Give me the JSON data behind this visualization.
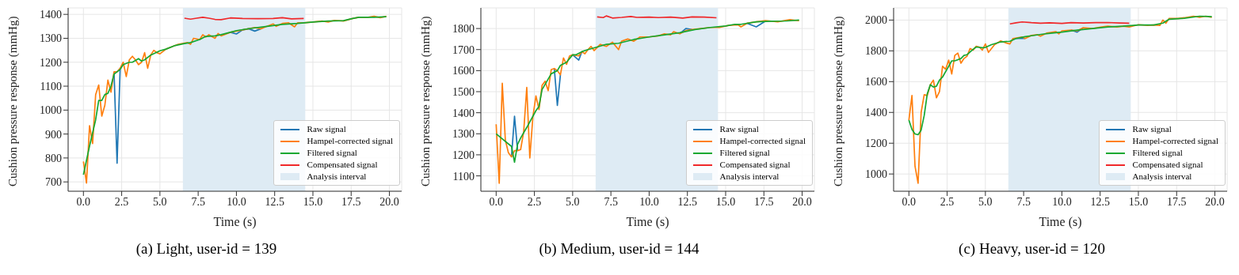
{
  "chart_data": [
    {
      "type": "line",
      "title": "(a) Light, user-id = 139",
      "xlabel": "Time (s)",
      "ylabel": "Cushion pressure response (mmHg)",
      "xlim": [
        -1,
        20.8
      ],
      "ylim": [
        661,
        1427
      ],
      "xticks": [
        {
          "value": 0,
          "label": "0.0"
        },
        {
          "value": 2.5,
          "label": "2.5"
        },
        {
          "value": 5,
          "label": "5.0"
        },
        {
          "value": 7.5,
          "label": "7.5"
        },
        {
          "value": 10,
          "label": "10.0"
        },
        {
          "value": 12.5,
          "label": "12.5"
        },
        {
          "value": 15,
          "label": "15.0"
        },
        {
          "value": 17.5,
          "label": "17.5"
        },
        {
          "value": 20,
          "label": "20.0"
        }
      ],
      "yticks": [
        700,
        800,
        900,
        1000,
        1100,
        1200,
        1300,
        1400
      ],
      "grid": true,
      "legend": "bottom right",
      "line_style": "solid",
      "marker": "none",
      "bands": [
        {
          "axis": "x",
          "from": 6.5,
          "to": 14.5,
          "label": "Analysis interval",
          "color": "#deebf4"
        }
      ],
      "series": [
        {
          "name": "Raw signal",
          "color": "#1f77b4",
          "x": [
            2,
            2.2,
            2.4,
            6,
            9.6,
            10,
            10.4,
            10.8,
            11.2,
            11.6
          ],
          "values": [
            1160,
            778,
            1170,
            null,
            1325,
            1318,
            1335,
            1340,
            1330,
            1340
          ]
        },
        {
          "name": "Hampel-corrected signal",
          "color": "#ff7f0e",
          "x": [
            0,
            0.2,
            0.4,
            0.6,
            0.8,
            1,
            1.2,
            1.4,
            1.6,
            1.8,
            2,
            2.2,
            2.4,
            2.6,
            2.8,
            3,
            3.2,
            3.4,
            3.6,
            3.8,
            4,
            4.2,
            4.4,
            4.6,
            4.8,
            5,
            5.4,
            5.8,
            6.2,
            6.6,
            6.8,
            7,
            7.2,
            7.6,
            7.8,
            8,
            8.2,
            8.6,
            8.8,
            9,
            9.6,
            10,
            10.4,
            10.8,
            11.2,
            11.6,
            12,
            12.4,
            12.6,
            13,
            13.4,
            13.8,
            14,
            14.4,
            15,
            15.6,
            16,
            16.4,
            17,
            17.6,
            18,
            18.6,
            19,
            19.4,
            19.8
          ],
          "values": [
            785,
            695,
            935,
            860,
            1065,
            1105,
            975,
            1020,
            1125,
            1075,
            1160,
            1160,
            1175,
            1200,
            1140,
            1210,
            1225,
            1210,
            1190,
            1200,
            1240,
            1175,
            1230,
            1250,
            1240,
            1235,
            1255,
            1265,
            1275,
            1280,
            1282,
            1275,
            1300,
            1295,
            1315,
            1305,
            1315,
            1300,
            1320,
            1310,
            1325,
            1330,
            1335,
            1340,
            1345,
            1340,
            1350,
            1360,
            1350,
            1362,
            1365,
            1348,
            1365,
            1365,
            1368,
            1372,
            1368,
            1375,
            1372,
            1383,
            1388,
            1388,
            1392,
            1386,
            1392
          ]
        },
        {
          "name": "Filtered signal",
          "color": "#16a832",
          "x": [
            0,
            0.4,
            0.8,
            1,
            1.2,
            1.4,
            1.6,
            1.8,
            2,
            2.4,
            2.6,
            3,
            3.2,
            3.6,
            3.8,
            4,
            4.4,
            5,
            5.4,
            6,
            6.6,
            7,
            7.6,
            8,
            8.6,
            9,
            9.6,
            10,
            11,
            12,
            13,
            14,
            15,
            16,
            17,
            17.6,
            18,
            19,
            19.8
          ],
          "values": [
            730,
            850,
            960,
            1040,
            1040,
            1065,
            1070,
            1100,
            1150,
            1170,
            1190,
            1200,
            1200,
            1215,
            1205,
            1210,
            1230,
            1248,
            1255,
            1270,
            1278,
            1282,
            1295,
            1308,
            1310,
            1315,
            1325,
            1332,
            1342,
            1350,
            1358,
            1362,
            1368,
            1372,
            1374,
            1383,
            1388,
            1388,
            1390
          ]
        },
        {
          "name": "Compensated signal",
          "color": "#f0282a",
          "x": [
            6.6,
            7,
            7.4,
            7.8,
            8.2,
            8.6,
            9,
            9.6,
            10.4,
            11.4,
            12.4,
            13,
            13.6,
            14.4
          ],
          "values": [
            1384,
            1380,
            1384,
            1388,
            1384,
            1379,
            1378,
            1385,
            1383,
            1382,
            1383,
            1386,
            1381,
            1383
          ]
        }
      ]
    },
    {
      "type": "line",
      "title": "(b) Medium, user-id = 144",
      "xlabel": "Time (s)",
      "ylabel": "Cushion pressure response (mmHg)",
      "xlim": [
        -1,
        20.8
      ],
      "ylim": [
        1027,
        1898
      ],
      "xticks": [
        {
          "value": 0,
          "label": "0.0"
        },
        {
          "value": 2.5,
          "label": "2.5"
        },
        {
          "value": 5,
          "label": "5.0"
        },
        {
          "value": 7.5,
          "label": "7.5"
        },
        {
          "value": 10,
          "label": "10.0"
        },
        {
          "value": 12.5,
          "label": "12.5"
        },
        {
          "value": 15,
          "label": "15.0"
        },
        {
          "value": 17.5,
          "label": "17.5"
        },
        {
          "value": 20,
          "label": "20.0"
        }
      ],
      "yticks": [
        1100,
        1200,
        1300,
        1400,
        1500,
        1600,
        1700,
        1800
      ],
      "grid": true,
      "legend": "bottom right",
      "line_style": "solid",
      "marker": "none",
      "bands": [
        {
          "axis": "x",
          "from": 6.5,
          "to": 14.5,
          "label": "Analysis interval",
          "color": "#deebf4"
        }
      ],
      "series": [
        {
          "name": "Raw signal",
          "color": "#1f77b4",
          "x": [
            1,
            1.2,
            1.4,
            3,
            3.8,
            4,
            4.2,
            4.8,
            5,
            5.4,
            5.6,
            10,
            12,
            12.4,
            12.8,
            15,
            16.4,
            17,
            17.6
          ],
          "values": [
            1190,
            1383,
            1220,
            null,
            1610,
            1435,
            1580,
            null,
            1675,
            1650,
            1690,
            null,
            1775,
            1800,
            1795,
            null,
            1825,
            1808,
            1835
          ]
        },
        {
          "name": "Hampel-corrected signal",
          "color": "#ff7f0e",
          "x": [
            0,
            0.2,
            0.4,
            0.6,
            0.8,
            1,
            1.2,
            1.4,
            1.6,
            1.8,
            2,
            2.2,
            2.4,
            2.6,
            2.8,
            3,
            3.2,
            3.4,
            3.6,
            3.8,
            4,
            4.2,
            4.4,
            4.6,
            4.8,
            5,
            5.4,
            5.6,
            5.8,
            6,
            6.2,
            6.4,
            6.8,
            7.2,
            7.6,
            8,
            8.2,
            8.6,
            9,
            9.4,
            10,
            10.6,
            11,
            11.4,
            11.6,
            12,
            12.4,
            12.8,
            13.4,
            14,
            14.6,
            15.2,
            15.8,
            16,
            16.4,
            17,
            17.6,
            18.4,
            19.2,
            19.8
          ],
          "values": [
            1345,
            1065,
            1540,
            1270,
            1210,
            1190,
            1220,
            1220,
            1225,
            1310,
            1520,
            1185,
            1380,
            1480,
            1415,
            1530,
            1550,
            1505,
            1605,
            1610,
            1600,
            1580,
            1660,
            1630,
            1670,
            1675,
            1670,
            1690,
            1680,
            1700,
            1715,
            1695,
            1725,
            1715,
            1735,
            1700,
            1740,
            1750,
            1740,
            1760,
            1760,
            1765,
            1775,
            1770,
            1785,
            1775,
            1790,
            1795,
            1800,
            1805,
            1805,
            1815,
            1818,
            1808,
            1825,
            1832,
            1838,
            1832,
            1842,
            1837
          ]
        },
        {
          "name": "Filtered signal",
          "color": "#16a832",
          "x": [
            0,
            1,
            1.2,
            1.4,
            1.6,
            2,
            2.6,
            2.8,
            3,
            3.6,
            4,
            4.2,
            4.6,
            5,
            5.2,
            5.6,
            6,
            6.6,
            7.2,
            8,
            9,
            10,
            11,
            12,
            13,
            14,
            15,
            15.6,
            16,
            17,
            18,
            19,
            19.8
          ],
          "values": [
            1300,
            1240,
            1165,
            1250,
            1280,
            1330,
            1410,
            1430,
            1510,
            1585,
            1600,
            1625,
            1640,
            1675,
            1675,
            1690,
            1700,
            1712,
            1725,
            1730,
            1748,
            1760,
            1770,
            1780,
            1795,
            1805,
            1812,
            1820,
            1820,
            1832,
            1835,
            1836,
            1840
          ]
        },
        {
          "name": "Compensated signal",
          "color": "#f0282a",
          "x": [
            6.6,
            7,
            7.2,
            7.6,
            8.2,
            8.8,
            9.2,
            10,
            10.6,
            11.4,
            12.2,
            12.8,
            13.6,
            14.4
          ],
          "values": [
            1855,
            1852,
            1860,
            1850,
            1853,
            1857,
            1853,
            1854,
            1852,
            1854,
            1850,
            1855,
            1854,
            1851
          ]
        }
      ]
    },
    {
      "type": "line",
      "title": "(c) Heavy, user-id = 120",
      "xlabel": "Time (s)",
      "ylabel": "Cushion pressure response (mmHg)",
      "xlim": [
        -1,
        20.8
      ],
      "ylim": [
        888,
        2079
      ],
      "xticks": [
        {
          "value": 0,
          "label": "0.0"
        },
        {
          "value": 2.5,
          "label": "2.5"
        },
        {
          "value": 5,
          "label": "5.0"
        },
        {
          "value": 7.5,
          "label": "7.5"
        },
        {
          "value": 10,
          "label": "10.0"
        },
        {
          "value": 12.5,
          "label": "12.5"
        },
        {
          "value": 15,
          "label": "15.0"
        },
        {
          "value": 17.5,
          "label": "17.5"
        },
        {
          "value": 20,
          "label": "20.0"
        }
      ],
      "yticks": [
        1000,
        1200,
        1400,
        1600,
        1800,
        2000
      ],
      "grid": true,
      "legend": "bottom right",
      "line_style": "solid",
      "marker": "none",
      "bands": [
        {
          "axis": "x",
          "from": 6.5,
          "to": 14.5,
          "label": "Analysis interval",
          "color": "#deebf4"
        }
      ],
      "series": [
        {
          "name": "Raw signal",
          "color": "#1f77b4",
          "x": [
            6.8,
            7.4,
            7.6,
            9,
            10.6,
            11,
            11.4
          ],
          "values": [
            1880,
            1880,
            1880,
            null,
            1935,
            1922,
            1950
          ]
        },
        {
          "name": "Hampel-corrected signal",
          "color": "#ff7f0e",
          "x": [
            0,
            0.2,
            0.4,
            0.6,
            0.8,
            1,
            1.2,
            1.4,
            1.6,
            1.8,
            2,
            2.2,
            2.4,
            2.6,
            2.8,
            3,
            3.2,
            3.4,
            3.6,
            3.8,
            4,
            4.2,
            4.4,
            4.6,
            4.8,
            5,
            5.2,
            5.6,
            6,
            6.4,
            6.6,
            6.8,
            7.4,
            7.6,
            8,
            8.4,
            8.6,
            9,
            9.6,
            9.8,
            10,
            10.6,
            11,
            11.4,
            12,
            12.6,
            13,
            13.6,
            14,
            14.4,
            15,
            15.6,
            16,
            16.4,
            16.6,
            16.8,
            17,
            17.6,
            18,
            18.6,
            19,
            19.4,
            19.8
          ],
          "values": [
            1350,
            1510,
            1050,
            940,
            1400,
            1515,
            1510,
            1580,
            1610,
            1495,
            1535,
            1700,
            1680,
            1740,
            1650,
            1770,
            1785,
            1720,
            1750,
            1765,
            1815,
            1805,
            1830,
            1825,
            1805,
            1845,
            1790,
            1840,
            1865,
            1850,
            1845,
            1880,
            1890,
            1880,
            1900,
            1905,
            1895,
            1915,
            1925,
            1910,
            1930,
            1935,
            1930,
            1950,
            1945,
            1955,
            1960,
            1955,
            1960,
            1955,
            1970,
            1965,
            1968,
            1965,
            2000,
            1980,
            2010,
            2010,
            2015,
            2025,
            2018,
            2025,
            2018
          ]
        },
        {
          "name": "Filtered signal",
          "color": "#16a832",
          "x": [
            0,
            0.2,
            0.4,
            0.6,
            0.8,
            1,
            1.2,
            1.4,
            1.6,
            1.8,
            2,
            2.2,
            2.6,
            2.8,
            3,
            3.4,
            3.6,
            3.8,
            4.2,
            4.4,
            4.8,
            5,
            5.4,
            6,
            6.6,
            7,
            7.6,
            8,
            9,
            10,
            11,
            12,
            13,
            14,
            15,
            16,
            16.6,
            17,
            18,
            19,
            19.8
          ],
          "values": [
            1350,
            1290,
            1260,
            1255,
            1285,
            1380,
            1520,
            1580,
            1565,
            1570,
            1610,
            1630,
            1700,
            1735,
            1735,
            1750,
            1770,
            1775,
            1810,
            1825,
            1820,
            1822,
            1840,
            1858,
            1862,
            1880,
            1892,
            1898,
            1912,
            1922,
            1935,
            1945,
            1955,
            1960,
            1968,
            1968,
            1980,
            2005,
            2012,
            2025,
            2022
          ]
        },
        {
          "name": "Compensated signal",
          "color": "#f0282a",
          "x": [
            6.6,
            7,
            7.4,
            8,
            8.6,
            9.2,
            10,
            10.6,
            11.4,
            12.2,
            13,
            13.8,
            14.4
          ],
          "values": [
            1975,
            1982,
            1988,
            1983,
            1980,
            1982,
            1978,
            1983,
            1981,
            1983,
            1984,
            1981,
            1980
          ]
        }
      ]
    }
  ]
}
